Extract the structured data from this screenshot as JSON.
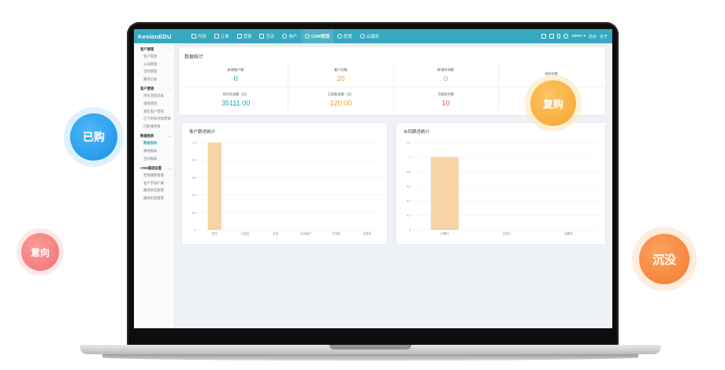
{
  "app": {
    "brand": "KesionEDU"
  },
  "topnav": {
    "items": [
      {
        "label": "内容",
        "icon": "document-icon",
        "active": false
      },
      {
        "label": "订单",
        "icon": "clipboard-icon",
        "active": false
      },
      {
        "label": "营销",
        "icon": "tag-icon",
        "active": false
      },
      {
        "label": "互动",
        "icon": "chat-icon",
        "active": false
      },
      {
        "label": "用户",
        "icon": "user-icon",
        "active": false
      },
      {
        "label": "CRM管理",
        "icon": "crm-icon",
        "active": true
      },
      {
        "label": "配置",
        "icon": "gear-icon",
        "active": false
      },
      {
        "label": "云服务",
        "icon": "cloud-icon",
        "active": false
      }
    ],
    "right": {
      "user": "admin ▾",
      "home_link": "前台",
      "about_link": "关于"
    }
  },
  "sidebar": {
    "groups": [
      {
        "title": "客户管理",
        "items": [
          "客户管理",
          "公海管理",
          "合同管理",
          "跟进记录"
        ]
      },
      {
        "title": "客户营销",
        "items": [
          "所有营销记录",
          "课程营销",
          "潜在客户营销",
          "已下单未付款营销",
          "已购课营销"
        ]
      },
      {
        "title": "数据报表",
        "items": [
          "数据报表",
          "跟进报表",
          "合同报表"
        ]
      },
      {
        "title": "CRM基础设置",
        "items": [
          "营销模板管理",
          "客户字段扩展",
          "跟进状态管理",
          "跟进阶段管理"
        ]
      }
    ],
    "active_item": "数据报表"
  },
  "stats": {
    "title": "数据统计",
    "items": [
      {
        "label": "新增客户数",
        "value": "0",
        "color": "#1aa9b4"
      },
      {
        "label": "客户总数",
        "value": "20",
        "color": "#f39c2c"
      },
      {
        "label": "新增合同数",
        "value": "0",
        "color": "#7cc576"
      },
      {
        "label": "合同总数",
        "value": "",
        "color": "#f39c2c"
      },
      {
        "label": "合同总金额（元）",
        "value": "35111.00",
        "color": "#1aa9b4"
      },
      {
        "label": "已回款金额（元）",
        "value": "120.00",
        "color": "#f39c2c"
      },
      {
        "label": "写跟进次数",
        "value": "10",
        "color": "#e05a4a"
      },
      {
        "label": "",
        "value": "",
        "color": "#7cc576"
      }
    ]
  },
  "charts": {
    "customer": {
      "title": "客户跟进统计"
    },
    "contract": {
      "title": "合同跟进统计"
    }
  },
  "chart_data": [
    {
      "type": "bar",
      "title": "客户跟进统计",
      "categories": [
        "意向",
        "已成交",
        "未成",
        "无效客户",
        "已流失",
        "无意向"
      ],
      "values": [
        1,
        0,
        0,
        0,
        0,
        0
      ],
      "ylim": [
        0,
        1.0
      ],
      "yticks": [
        "0",
        "0.2",
        "0.4",
        "0.6",
        "0.8",
        "1.0"
      ],
      "color": "#f8d3a6",
      "grid": true
    },
    {
      "type": "bar",
      "title": "合同跟进统计",
      "categories": [
        "已履约",
        "已执行",
        "待履约"
      ],
      "values": [
        1,
        0,
        0
      ],
      "ylim": [
        0,
        1.2
      ],
      "yticks": [
        "0",
        "0.2",
        "0.4",
        "0.6",
        "0.8",
        "1",
        "1.2"
      ],
      "color": "#f8d3a6",
      "grid": true
    }
  ],
  "bubbles": [
    {
      "label": "已购",
      "color": "#1e9cf0",
      "halo": "#cfe9fc"
    },
    {
      "label": "复购",
      "color": "#fbb040",
      "halo": "#fde8c4"
    },
    {
      "label": "意向",
      "color": "#f87e7e",
      "halo": "#fde0e0"
    },
    {
      "label": "沉没",
      "color": "#f7883c",
      "halo": "#fde3cf"
    }
  ]
}
